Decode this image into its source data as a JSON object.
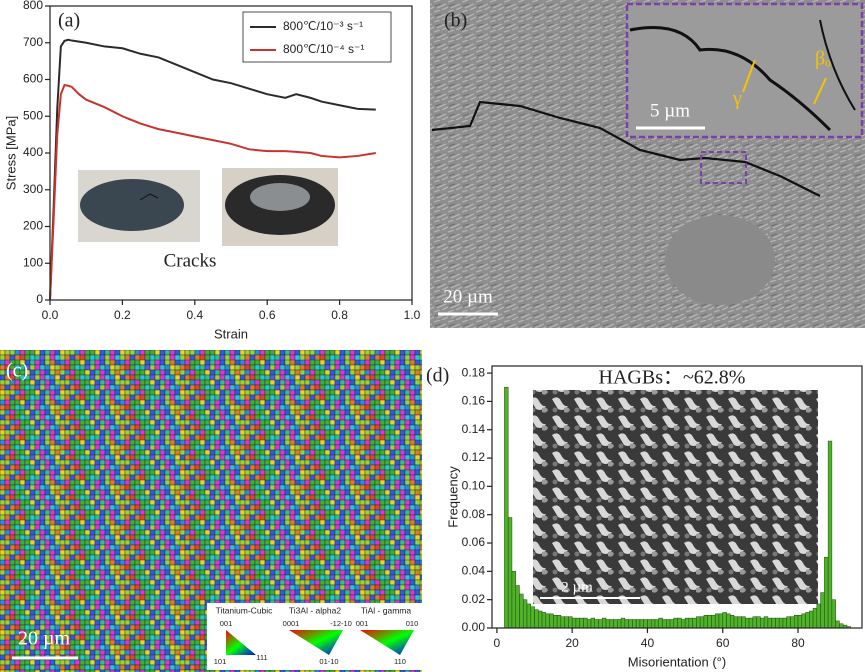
{
  "chart_data": [
    {
      "type": "line",
      "panel_label": "(a)",
      "x": [
        0,
        0.01,
        0.02,
        0.03,
        0.04,
        0.05,
        0.06,
        0.08,
        0.1,
        0.15,
        0.2,
        0.25,
        0.3,
        0.35,
        0.4,
        0.45,
        0.5,
        0.55,
        0.6,
        0.65,
        0.68,
        0.72,
        0.75,
        0.8,
        0.85,
        0.9
      ],
      "series": [
        {
          "name": "800℃/10⁻³ s⁻¹",
          "color": "#2b2b2b",
          "values": [
            0,
            250,
            520,
            690,
            705,
            708,
            706,
            703,
            700,
            690,
            685,
            670,
            660,
            640,
            620,
            600,
            590,
            575,
            560,
            550,
            560,
            550,
            540,
            530,
            520,
            518
          ]
        },
        {
          "name": "800℃/10⁻⁴ s⁻¹",
          "color": "#c8342c",
          "values": [
            0,
            220,
            450,
            560,
            585,
            583,
            580,
            560,
            545,
            525,
            500,
            480,
            465,
            455,
            445,
            435,
            425,
            410,
            405,
            405,
            403,
            400,
            392,
            388,
            392,
            400
          ]
        }
      ],
      "xlabel": "Strain",
      "ylabel": "Stress [MPa]",
      "xlim": [
        0,
        1
      ],
      "ylim": [
        0,
        800
      ],
      "xticks": [
        {
          "value": 0,
          "label": "0.0"
        },
        {
          "value": 0.2,
          "label": "0.2"
        },
        {
          "value": 0.4,
          "label": "0.4"
        },
        {
          "value": 0.6,
          "label": "0.6"
        },
        {
          "value": 0.8,
          "label": "0.8"
        },
        {
          "value": 1,
          "label": "1.0"
        }
      ],
      "yticks": [
        0,
        100,
        200,
        300,
        400,
        500,
        600,
        700,
        800
      ],
      "legend": "upper right",
      "annotation": "Cracks"
    },
    {
      "type": "histogram",
      "panel_label": "(d)",
      "title": "HAGBs：~62.8%",
      "bins": [
        2,
        3,
        4,
        5,
        6,
        7,
        8,
        9,
        10,
        11,
        12,
        13,
        14,
        15,
        16,
        17,
        18,
        19,
        20,
        21,
        22,
        23,
        24,
        25,
        26,
        27,
        28,
        29,
        30,
        31,
        32,
        33,
        34,
        35,
        36,
        37,
        38,
        39,
        40,
        41,
        42,
        43,
        44,
        45,
        46,
        47,
        48,
        49,
        50,
        51,
        52,
        53,
        54,
        55,
        56,
        57,
        58,
        59,
        60,
        61,
        62,
        63,
        64,
        65,
        66,
        67,
        68,
        69,
        70,
        71,
        72,
        73,
        74,
        75,
        76,
        77,
        78,
        79,
        80,
        81,
        82,
        83,
        84,
        85,
        86,
        87,
        88,
        89,
        90,
        91,
        92,
        93,
        94
      ],
      "values": [
        0.17,
        0.078,
        0.04,
        0.03,
        0.024,
        0.02,
        0.017,
        0.015,
        0.013,
        0.012,
        0.011,
        0.01,
        0.01,
        0.009,
        0.009,
        0.008,
        0.008,
        0.008,
        0.007,
        0.007,
        0.007,
        0.007,
        0.006,
        0.007,
        0.006,
        0.006,
        0.007,
        0.006,
        0.006,
        0.006,
        0.006,
        0.007,
        0.006,
        0.006,
        0.006,
        0.006,
        0.006,
        0.006,
        0.006,
        0.006,
        0.006,
        0.007,
        0.006,
        0.006,
        0.006,
        0.007,
        0.007,
        0.006,
        0.007,
        0.007,
        0.007,
        0.008,
        0.008,
        0.009,
        0.009,
        0.009,
        0.01,
        0.01,
        0.011,
        0.01,
        0.009,
        0.008,
        0.008,
        0.008,
        0.007,
        0.007,
        0.008,
        0.008,
        0.007,
        0.008,
        0.007,
        0.007,
        0.007,
        0.007,
        0.007,
        0.008,
        0.008,
        0.009,
        0.009,
        0.01,
        0.011,
        0.012,
        0.014,
        0.017,
        0.025,
        0.05,
        0.132,
        0.02,
        0.005,
        0.003,
        0.002,
        0.001
      ],
      "color": "#4fb228",
      "xlabel": "Misorientation (°)",
      "ylabel": "Frequency",
      "xlim": [
        -1.3,
        97
      ],
      "ylim": [
        0,
        0.185
      ],
      "xticks": [
        0,
        20,
        40,
        60,
        80
      ],
      "yticks": [
        {
          "value": 0,
          "label": "0.00"
        },
        {
          "value": 0.02,
          "label": "0.02"
        },
        {
          "value": 0.04,
          "label": "0.04"
        },
        {
          "value": 0.06,
          "label": "0.06"
        },
        {
          "value": 0.08,
          "label": "0.08"
        },
        {
          "value": 0.1,
          "label": "0.10"
        },
        {
          "value": 0.12,
          "label": "0.12"
        },
        {
          "value": 0.14,
          "label": "0.14"
        },
        {
          "value": 0.16,
          "label": "0.16"
        },
        {
          "value": 0.18,
          "label": "0.18"
        }
      ],
      "annotation": "2 µm"
    }
  ],
  "images": {
    "b": {
      "label": "(b)",
      "scale_bar": "20 µm",
      "inset_scale_bar": "5 µm",
      "phases": [
        "γ",
        "βₒ"
      ]
    },
    "c": {
      "label": "(c)",
      "scale_bar": "20 µm",
      "keys": [
        {
          "title": "Titanium-Cubic",
          "corners": [
            "001",
            "101",
            "111"
          ]
        },
        {
          "title": "Ti3Al - alpha2",
          "corners": [
            "0001",
            "-12-10",
            "01-10"
          ]
        },
        {
          "title": "TiAl - gamma",
          "corners": [
            "001",
            "010",
            "110"
          ]
        }
      ]
    }
  }
}
